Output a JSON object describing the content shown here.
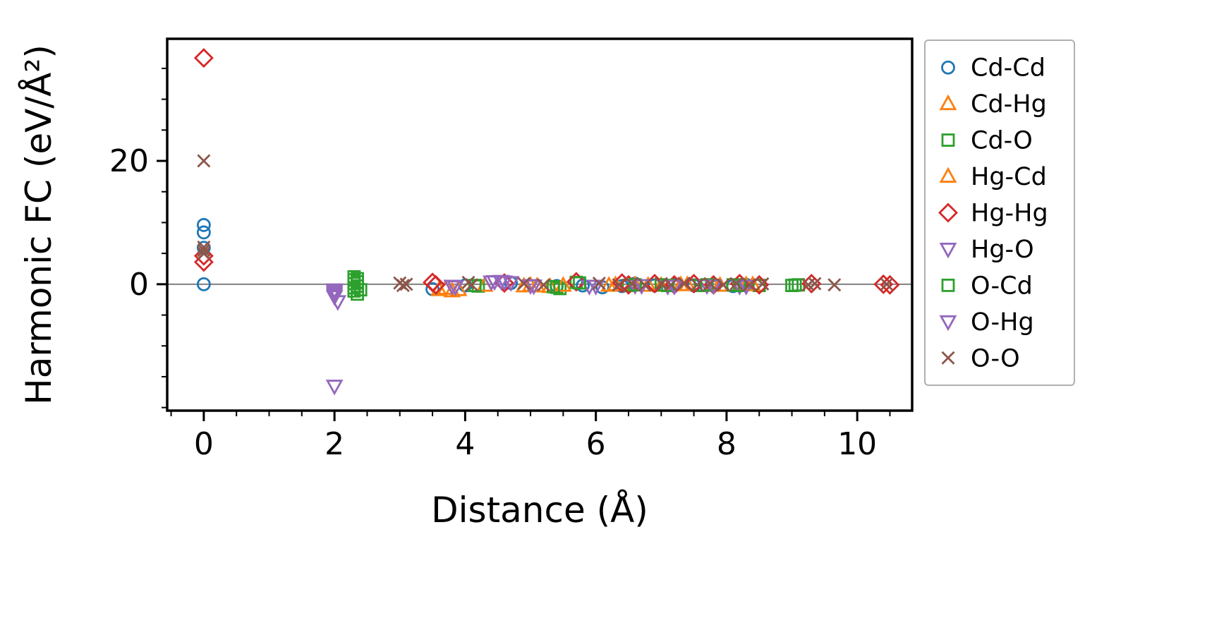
{
  "figure": {
    "xlabel": "Distance (Å)",
    "ylabel": "Harmonic FC (eV/Å²)"
  },
  "chart_data": {
    "type": "scatter",
    "title": "",
    "xlabel": "Distance (Å)",
    "ylabel": "Harmonic FC (eV/Å²)",
    "xlim": [
      -0.56,
      10.84
    ],
    "ylim": [
      -20.5,
      39.8
    ],
    "xticks": [
      0,
      2,
      4,
      6,
      8,
      10
    ],
    "yticks": [
      0,
      20
    ],
    "x_minor_step": 0.5,
    "y_minor_step": 5,
    "grid": false,
    "hline_y": 0,
    "hline_color": "#808080",
    "legend_position": "outside-right",
    "frame_color": "#000000",
    "series": [
      {
        "name": "Cd-Cd",
        "marker": "circle",
        "color": "#1f77b4",
        "points": [
          [
            0,
            9.6
          ],
          [
            0,
            8.4
          ],
          [
            0,
            5.9
          ],
          [
            0,
            0.0
          ],
          [
            3.5,
            -0.8
          ],
          [
            4.0,
            -0.2
          ],
          [
            4.7,
            0.2
          ],
          [
            5.4,
            -0.3
          ],
          [
            5.8,
            -0.2
          ],
          [
            6.1,
            -0.5
          ],
          [
            6.4,
            -0.3
          ],
          [
            6.6,
            0.1
          ],
          [
            6.9,
            -0.2
          ],
          [
            7.2,
            -0.1
          ],
          [
            7.5,
            -0.2
          ],
          [
            7.8,
            -0.1
          ],
          [
            8.1,
            -0.3
          ],
          [
            8.3,
            -0.1
          ],
          [
            8.5,
            -0.2
          ]
        ]
      },
      {
        "name": "Cd-Hg",
        "marker": "triangle-up",
        "color": "#ff7f0e",
        "points": [
          [
            3.6,
            -0.9
          ],
          [
            3.8,
            -1.1
          ],
          [
            4.9,
            -0.3
          ],
          [
            5.0,
            -0.2
          ],
          [
            5.3,
            -0.4
          ],
          [
            6.2,
            -0.2
          ],
          [
            6.6,
            -0.1
          ],
          [
            7.0,
            -0.2
          ],
          [
            7.4,
            -0.1
          ],
          [
            7.9,
            -0.2
          ],
          [
            8.3,
            -0.1
          ]
        ]
      },
      {
        "name": "Cd-O",
        "marker": "square",
        "color": "#2ca02c",
        "points": [
          [
            2.3,
            1.2
          ],
          [
            2.3,
            0.7
          ],
          [
            2.3,
            0.1
          ],
          [
            2.3,
            -0.6
          ],
          [
            2.3,
            -1.1
          ],
          [
            2.35,
            -1.6
          ],
          [
            4.2,
            -0.3
          ],
          [
            5.4,
            -0.5
          ],
          [
            5.45,
            -0.7
          ],
          [
            5.7,
            0.3
          ],
          [
            6.5,
            -0.2
          ],
          [
            7.0,
            -0.1
          ],
          [
            7.6,
            -0.2
          ],
          [
            8.1,
            -0.1
          ],
          [
            8.5,
            -0.2
          ],
          [
            9.0,
            -0.2
          ],
          [
            9.1,
            -0.1
          ]
        ]
      },
      {
        "name": "Hg-Cd",
        "marker": "triangle-up",
        "color": "#ff7f0e",
        "points": [
          [
            3.7,
            -0.7
          ],
          [
            3.9,
            -0.9
          ],
          [
            4.3,
            -0.2
          ],
          [
            5.1,
            -0.3
          ],
          [
            5.5,
            -0.2
          ],
          [
            6.3,
            -0.1
          ],
          [
            6.8,
            -0.2
          ],
          [
            7.3,
            -0.1
          ],
          [
            7.8,
            -0.2
          ],
          [
            8.4,
            -0.1
          ]
        ]
      },
      {
        "name": "Hg-Hg",
        "marker": "diamond",
        "color": "#d62728",
        "points": [
          [
            0,
            36.7
          ],
          [
            0,
            4.6
          ],
          [
            0,
            3.6
          ],
          [
            3.5,
            0.3
          ],
          [
            3.55,
            -0.1
          ],
          [
            4.6,
            0.2
          ],
          [
            5.7,
            0.4
          ],
          [
            6.4,
            0.2
          ],
          [
            6.5,
            -0.1
          ],
          [
            6.9,
            0.1
          ],
          [
            7.2,
            -0.1
          ],
          [
            7.5,
            0.1
          ],
          [
            7.8,
            -0.1
          ],
          [
            8.2,
            0.1
          ],
          [
            8.5,
            -0.1
          ],
          [
            9.3,
            0.1
          ],
          [
            10.4,
            0.0
          ],
          [
            10.5,
            -0.1
          ]
        ]
      },
      {
        "name": "Hg-O",
        "marker": "triangle-down",
        "color": "#9467bd",
        "points": [
          [
            2.0,
            -0.9
          ],
          [
            2.0,
            -1.4
          ],
          [
            2.0,
            -2.0
          ],
          [
            2.05,
            -2.8
          ],
          [
            2.0,
            -16.5
          ],
          [
            3.8,
            -0.3
          ],
          [
            4.4,
            0.4
          ],
          [
            4.55,
            0.5
          ],
          [
            4.7,
            0.3
          ],
          [
            5.0,
            -0.2
          ],
          [
            5.9,
            -0.3
          ],
          [
            6.6,
            -0.2
          ],
          [
            7.1,
            -0.3
          ],
          [
            7.7,
            -0.2
          ],
          [
            8.2,
            -0.3
          ]
        ]
      },
      {
        "name": "O-Cd",
        "marker": "square",
        "color": "#2ca02c",
        "points": [
          [
            2.35,
            0.9
          ],
          [
            2.35,
            0.4
          ],
          [
            2.35,
            -0.3
          ],
          [
            2.4,
            -0.9
          ],
          [
            4.15,
            -0.2
          ],
          [
            5.35,
            -0.4
          ],
          [
            5.75,
            0.2
          ],
          [
            6.6,
            -0.1
          ],
          [
            7.1,
            -0.2
          ],
          [
            7.7,
            -0.1
          ],
          [
            8.2,
            -0.2
          ],
          [
            9.05,
            -0.15
          ]
        ]
      },
      {
        "name": "O-Hg",
        "marker": "triangle-down",
        "color": "#9467bd",
        "points": [
          [
            2.0,
            -1.1
          ],
          [
            2.0,
            -1.7
          ],
          [
            3.85,
            -0.4
          ],
          [
            4.45,
            0.45
          ],
          [
            4.6,
            0.4
          ],
          [
            5.05,
            -0.25
          ],
          [
            6.0,
            -0.3
          ],
          [
            6.7,
            -0.2
          ],
          [
            7.2,
            -0.3
          ],
          [
            7.8,
            -0.25
          ],
          [
            8.3,
            -0.3
          ]
        ]
      },
      {
        "name": "O-O",
        "marker": "x",
        "color": "#8c564b",
        "points": [
          [
            0,
            20.0
          ],
          [
            0,
            6.0
          ],
          [
            0,
            5.5
          ],
          [
            0,
            5.0
          ],
          [
            3.0,
            0.2
          ],
          [
            3.05,
            -0.2
          ],
          [
            3.1,
            0.0
          ],
          [
            4.05,
            0.3
          ],
          [
            4.1,
            -0.1
          ],
          [
            4.9,
            0.1
          ],
          [
            5.2,
            -0.1
          ],
          [
            6.05,
            0.15
          ],
          [
            6.35,
            -0.1
          ],
          [
            6.55,
            0.1
          ],
          [
            6.75,
            -0.15
          ],
          [
            7.0,
            0.1
          ],
          [
            7.15,
            -0.1
          ],
          [
            7.35,
            0.15
          ],
          [
            7.55,
            -0.1
          ],
          [
            7.75,
            0.1
          ],
          [
            7.95,
            -0.1
          ],
          [
            8.15,
            0.1
          ],
          [
            8.35,
            -0.1
          ],
          [
            8.55,
            0.05
          ],
          [
            9.25,
            -0.1
          ],
          [
            9.35,
            0.1
          ],
          [
            9.65,
            -0.1
          ],
          [
            10.45,
            0.0
          ]
        ]
      }
    ]
  }
}
